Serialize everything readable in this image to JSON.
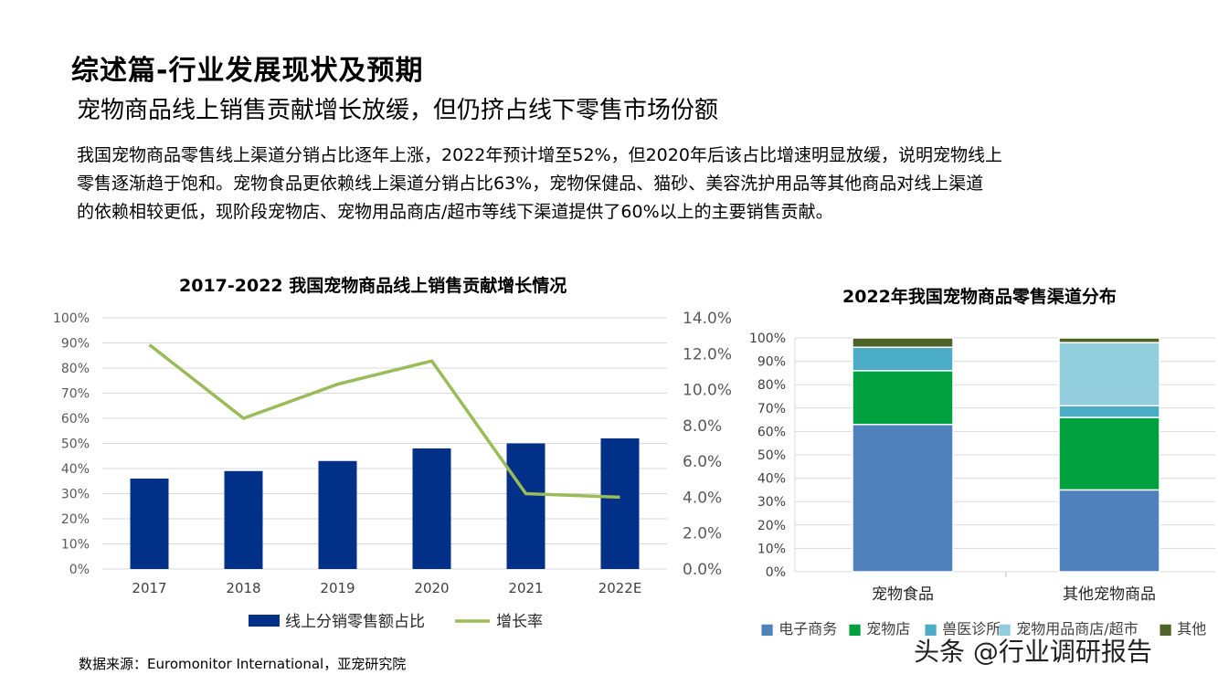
{
  "page": {
    "title": "综述篇-行业发展现状及预期",
    "subtitle": "宠物商品线上销售贡献增长放缓，但仍挤占线下零售市场份额",
    "body_lines": [
      "我国宠物商品零售线上渠道分销占比逐年上涨，2022年预计增至52%，但2020年后该占比增速明显放缓，说明宠物线上",
      "零售逐渐趋于饱和。宠物食品更依赖线上渠道分销占比63%，宠物保健品、猫砂、美容洗护用品等其他商品对线上渠道",
      "的依赖相较更低，现阶段宠物店、宠物用品商店/超市等线下渠道提供了60%以上的主要销售贡献。"
    ],
    "source": "数据来源：Euromonitor International，亚宠研究院",
    "watermark": "头条 @行业调研报告"
  },
  "chart_data": [
    {
      "type": "bar",
      "title": "2017-2022 我国宠物商品线上销售贡献增长情况",
      "categories": [
        "2017",
        "2018",
        "2019",
        "2020",
        "2021",
        "2022E"
      ],
      "series": [
        {
          "name": "线上分销零售额占比",
          "type": "bar",
          "axis": "left",
          "color": "#003087",
          "values": [
            36,
            39,
            43,
            48,
            50,
            52
          ]
        },
        {
          "name": "增长率",
          "type": "line",
          "axis": "right",
          "color": "#9BBB59",
          "values": [
            12.5,
            8.4,
            10.3,
            11.6,
            4.2,
            4.0
          ]
        }
      ],
      "y_left": {
        "ylim": [
          0,
          100
        ],
        "ticks": [
          "0%",
          "10%",
          "20%",
          "30%",
          "40%",
          "50%",
          "60%",
          "70%",
          "80%",
          "90%",
          "100%"
        ]
      },
      "y_right": {
        "ylim": [
          0,
          14
        ],
        "ticks": [
          "0.0%",
          "2.0%",
          "4.0%",
          "6.0%",
          "8.0%",
          "10.0%",
          "12.0%",
          "14.0%"
        ]
      },
      "grid": true,
      "legend": "bottom"
    },
    {
      "type": "bar",
      "stacked": true,
      "title": "2022年我国宠物商品零售渠道分布",
      "categories": [
        "宠物食品",
        "其他宠物商品"
      ],
      "series": [
        {
          "name": "电子商务",
          "color": "#4F81BD",
          "values": [
            63,
            35
          ]
        },
        {
          "name": "宠物店",
          "color": "#00A03E",
          "values": [
            23,
            31
          ]
        },
        {
          "name": "兽医诊所",
          "color": "#4BACC6",
          "values": [
            10,
            5
          ]
        },
        {
          "name": "宠物用品商店/超市",
          "color": "#92CDDC",
          "values": [
            0,
            27
          ]
        },
        {
          "name": "其他",
          "color": "#4F6228",
          "values": [
            4,
            2
          ]
        }
      ],
      "y": {
        "ylim": [
          0,
          100
        ],
        "ticks": [
          "0%",
          "10%",
          "20%",
          "30%",
          "40%",
          "50%",
          "60%",
          "70%",
          "80%",
          "90%",
          "100%"
        ]
      },
      "grid": true,
      "legend": "bottom"
    }
  ]
}
